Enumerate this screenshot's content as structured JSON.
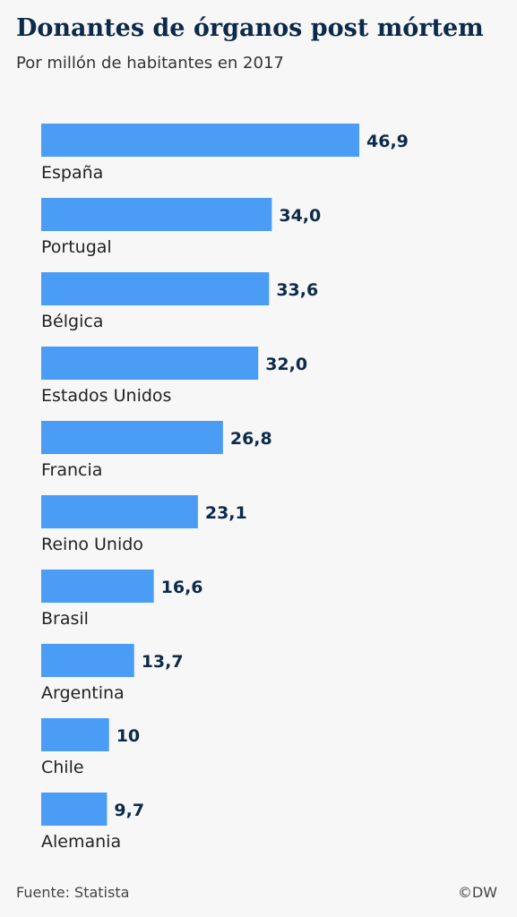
{
  "chart_data": {
    "type": "bar",
    "orientation": "horizontal",
    "title": "Donantes de órganos post mórtem",
    "subtitle": "Por millón de habitantes en 2017",
    "categories": [
      "España",
      "Portugal",
      "Bélgica",
      "Estados Unidos",
      "Francia",
      "Reino Unido",
      "Brasil",
      "Argentina",
      "Chile",
      "Alemania"
    ],
    "values": [
      46.9,
      34.0,
      33.6,
      32.0,
      26.8,
      23.1,
      16.6,
      13.7,
      10,
      9.7
    ],
    "value_labels": [
      "46,9",
      "34,0",
      "33,6",
      "32,0",
      "26,8",
      "23,1",
      "16,6",
      "13,7",
      "10",
      "9,7"
    ],
    "bar_color": "#4a9cf5",
    "grid": false,
    "legend": false
  },
  "footer": {
    "source": "Fuente: Statista",
    "credit": "©DW"
  }
}
